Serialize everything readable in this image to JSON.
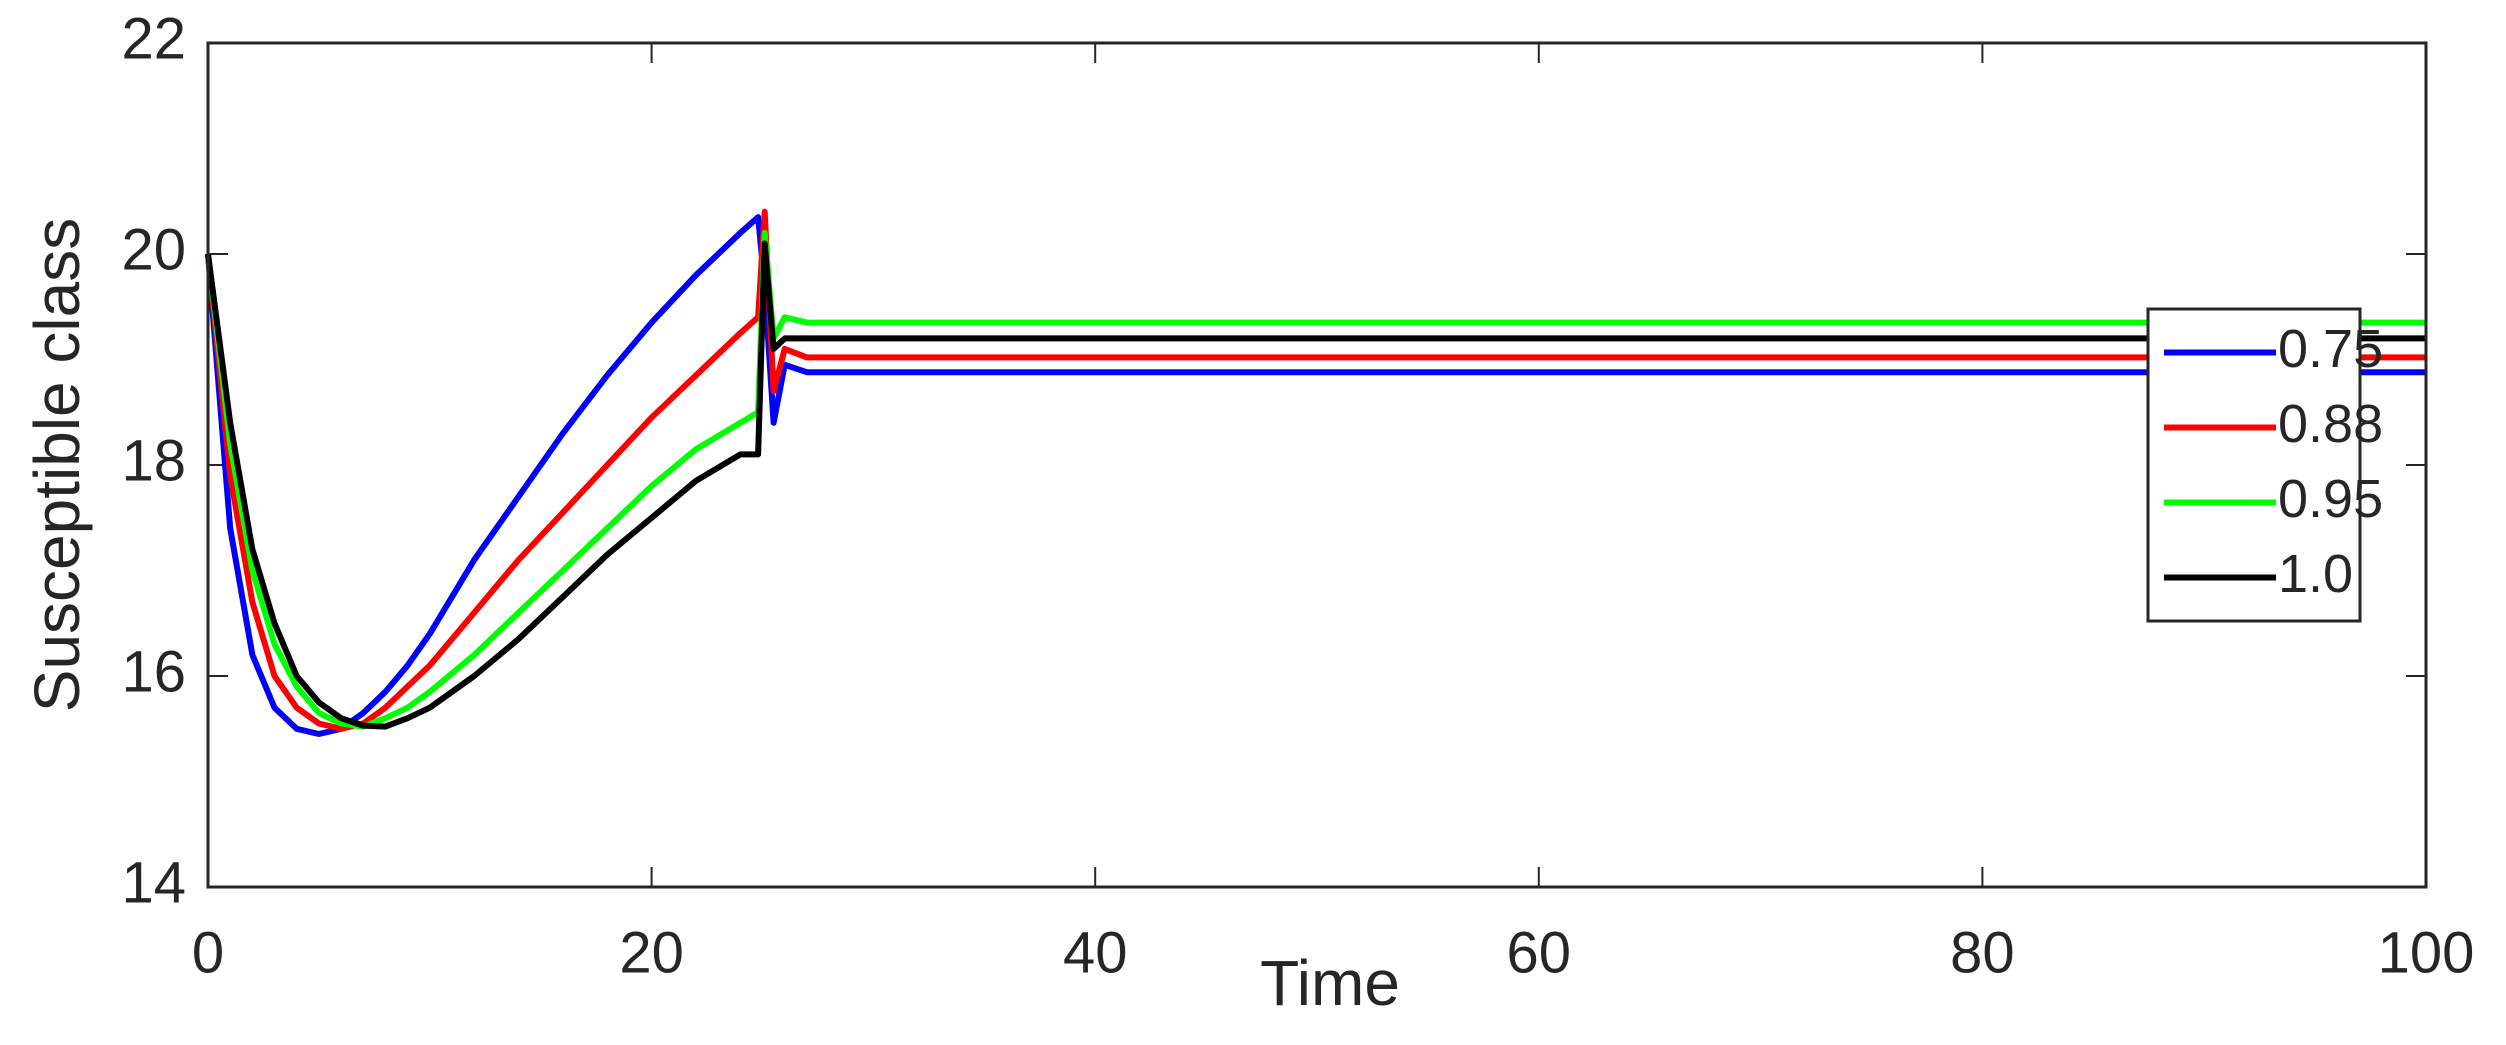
{
  "chart_data": {
    "type": "line",
    "x_label": "Time",
    "y_label": "Susceptible class",
    "x": [
      0,
      1,
      2,
      3,
      4,
      5,
      6,
      7,
      8,
      9,
      10,
      12,
      14,
      16,
      18,
      20,
      22,
      24,
      24.8,
      25.1,
      25.5,
      26,
      27,
      28,
      40,
      60,
      80,
      100
    ],
    "series": [
      {
        "name": "0.75",
        "color": "#0000ff",
        "values": [
          20,
          17.4,
          16.2,
          15.7,
          15.5,
          15.45,
          15.5,
          15.65,
          15.85,
          16.1,
          16.4,
          17.1,
          17.7,
          18.3,
          18.85,
          19.35,
          19.8,
          20.2,
          20.35,
          19.7,
          18.4,
          18.95,
          18.88,
          18.88,
          18.88,
          18.88,
          18.88,
          18.88
        ]
      },
      {
        "name": "0.88",
        "color": "#ff0000",
        "values": [
          20,
          17.9,
          16.7,
          16.0,
          15.7,
          15.55,
          15.5,
          15.55,
          15.7,
          15.9,
          16.1,
          16.6,
          17.1,
          17.55,
          18.0,
          18.45,
          18.85,
          19.25,
          19.4,
          20.4,
          18.7,
          19.1,
          19.02,
          19.02,
          19.02,
          19.02,
          19.02,
          19.02
        ]
      },
      {
        "name": "0.95",
        "color": "#00ff00",
        "values": [
          20,
          18.2,
          17.0,
          16.3,
          15.9,
          15.65,
          15.55,
          15.52,
          15.6,
          15.7,
          15.85,
          16.2,
          16.6,
          17.0,
          17.4,
          17.8,
          18.15,
          18.4,
          18.5,
          20.2,
          19.2,
          19.4,
          19.35,
          19.35,
          19.35,
          19.35,
          19.35,
          19.35
        ]
      },
      {
        "name": "1.0",
        "color": "#000000",
        "values": [
          20,
          18.4,
          17.2,
          16.5,
          16.0,
          15.75,
          15.6,
          15.53,
          15.52,
          15.6,
          15.7,
          16.0,
          16.35,
          16.75,
          17.15,
          17.5,
          17.85,
          18.1,
          18.1,
          20.1,
          19.1,
          19.2,
          19.2,
          19.2,
          19.2,
          19.2,
          19.2,
          19.2
        ]
      }
    ],
    "xlim": [
      0,
      100
    ],
    "xticks": [
      0,
      20,
      40,
      60,
      80,
      100
    ],
    "ylim": [
      14,
      22
    ],
    "yticks": [
      14,
      16,
      18,
      20,
      22
    ],
    "grid": false,
    "legend_position": "right"
  }
}
